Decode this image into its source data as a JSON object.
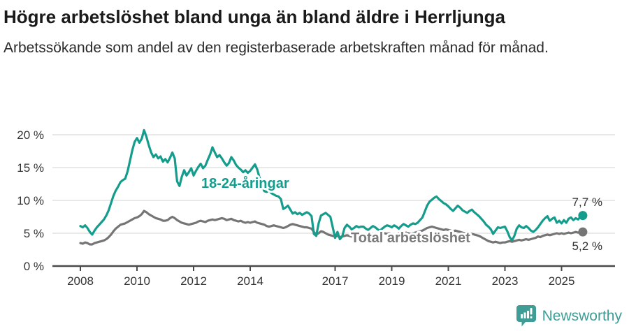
{
  "chart_data": {
    "type": "line",
    "title": "Högre arbetslöshet bland unga än bland äldre i Herrljunga",
    "subtitle": "Arbetssökande som andel av den registerbaserade arbetskraften månad för månad.",
    "unit": "%",
    "x": {
      "start_year": 2008,
      "start_month": 1,
      "interval": "monthly"
    },
    "ylim": [
      0,
      21
    ],
    "yticks": [
      0,
      5,
      10,
      15,
      20
    ],
    "ytick_suffix": " %",
    "xticks": [
      2008,
      2010,
      2012,
      2014,
      2017,
      2019,
      2021,
      2023,
      2025
    ],
    "grid": "horizontal",
    "legend": "inline-labels",
    "colors": {
      "young": "#149c8c",
      "total": "#757575",
      "axis": "#4a4a4a",
      "gridline": "#dcdcdc"
    },
    "series": [
      {
        "name": "18-24-åringar",
        "color": "#149c8c",
        "end_label": "7,7 %",
        "last_value": 7.7,
        "values": [
          6.1,
          5.9,
          6.2,
          5.8,
          5.2,
          4.8,
          5.4,
          5.9,
          6.3,
          6.7,
          7.1,
          7.7,
          8.5,
          9.6,
          10.7,
          11.5,
          12.1,
          12.8,
          13.1,
          13.3,
          14.4,
          16.0,
          17.6,
          18.9,
          19.5,
          18.8,
          19.4,
          20.7,
          19.7,
          18.4,
          17.3,
          16.6,
          17.0,
          16.4,
          16.7,
          15.9,
          16.3,
          15.8,
          16.5,
          17.3,
          16.4,
          12.9,
          12.2,
          13.6,
          14.6,
          13.8,
          14.3,
          14.9,
          13.8,
          14.5,
          15.1,
          15.6,
          14.9,
          15.3,
          16.2,
          17.0,
          18.1,
          17.3,
          16.6,
          16.9,
          16.4,
          15.8,
          15.3,
          15.7,
          16.6,
          16.1,
          15.4,
          15.0,
          14.7,
          14.3,
          14.6,
          14.2,
          14.5,
          15.0,
          15.5,
          14.7,
          13.4,
          12.1,
          11.4,
          11.3,
          11.5,
          11.1,
          10.9,
          10.7,
          10.6,
          10.2,
          8.7,
          8.9,
          9.2,
          8.6,
          8.0,
          8.2,
          7.9,
          8.1,
          7.8,
          8.0,
          8.2,
          8.0,
          7.6,
          4.9,
          4.6,
          6.5,
          7.7,
          7.9,
          8.1,
          7.8,
          7.5,
          5.9,
          4.3,
          5.2,
          4.1,
          4.5,
          5.8,
          6.3,
          6.0,
          5.6,
          5.8,
          6.1,
          5.9,
          6.0,
          6.0,
          5.7,
          5.5,
          5.8,
          6.1,
          5.9,
          5.6,
          5.4,
          5.7,
          6.0,
          6.2,
          6.1,
          5.9,
          6.2,
          6.0,
          5.7,
          6.1,
          6.4,
          6.2,
          6.0,
          6.3,
          6.5,
          6.4,
          6.6,
          7.0,
          7.4,
          8.3,
          9.2,
          9.8,
          10.1,
          10.4,
          10.6,
          10.2,
          9.9,
          9.6,
          9.4,
          9.1,
          8.7,
          8.4,
          8.8,
          9.2,
          8.9,
          8.5,
          8.3,
          8.1,
          8.4,
          8.6,
          8.2,
          7.9,
          7.6,
          7.2,
          6.8,
          6.3,
          6.0,
          5.6,
          4.9,
          5.4,
          5.9,
          5.8,
          5.9,
          6.0,
          5.3,
          4.4,
          3.9,
          4.6,
          5.7,
          6.2,
          5.9,
          5.8,
          6.1,
          5.8,
          5.4,
          5.2,
          5.5,
          5.9,
          6.4,
          6.9,
          7.3,
          7.6,
          6.9,
          7.2,
          7.4,
          6.6,
          6.9,
          6.5,
          7.0,
          6.6,
          7.2,
          7.4,
          7.0,
          7.3,
          7.1,
          7.5,
          7.7
        ]
      },
      {
        "name": "Total arbetslöshet",
        "color": "#757575",
        "end_label": "5,2 %",
        "last_value": 5.2,
        "values": [
          3.5,
          3.4,
          3.6,
          3.5,
          3.3,
          3.3,
          3.5,
          3.6,
          3.7,
          3.8,
          3.9,
          4.1,
          4.4,
          4.8,
          5.3,
          5.7,
          6.0,
          6.3,
          6.4,
          6.5,
          6.7,
          6.9,
          7.1,
          7.3,
          7.4,
          7.6,
          7.9,
          8.4,
          8.2,
          7.9,
          7.7,
          7.5,
          7.3,
          7.2,
          7.1,
          6.9,
          6.9,
          7.0,
          7.3,
          7.5,
          7.3,
          7.0,
          6.8,
          6.6,
          6.5,
          6.4,
          6.3,
          6.4,
          6.5,
          6.6,
          6.8,
          6.9,
          6.8,
          6.7,
          6.9,
          7.0,
          7.1,
          7.0,
          7.1,
          7.2,
          7.3,
          7.2,
          7.0,
          7.1,
          7.2,
          7.0,
          6.9,
          6.8,
          6.9,
          6.7,
          6.6,
          6.7,
          6.6,
          6.7,
          6.8,
          6.6,
          6.5,
          6.4,
          6.3,
          6.1,
          6.0,
          6.1,
          6.2,
          6.1,
          6.0,
          5.9,
          5.8,
          5.9,
          6.1,
          6.3,
          6.4,
          6.3,
          6.2,
          6.1,
          6.0,
          5.9,
          5.9,
          5.8,
          5.7,
          5.2,
          4.8,
          5.0,
          5.3,
          5.2,
          5.0,
          4.8,
          4.7,
          4.6,
          4.5,
          4.6,
          4.4,
          4.5,
          4.6,
          4.7,
          4.6,
          4.5,
          4.6,
          4.7,
          4.6,
          4.7,
          4.7,
          4.6,
          4.7,
          4.8,
          4.9,
          4.8,
          4.7,
          4.8,
          4.9,
          5.0,
          4.9,
          5.0,
          4.9,
          4.8,
          4.9,
          5.0,
          4.9,
          5.0,
          5.1,
          5.0,
          4.9,
          5.0,
          5.1,
          5.2,
          5.3,
          5.4,
          5.6,
          5.8,
          5.9,
          6.0,
          5.9,
          5.8,
          5.7,
          5.6,
          5.5,
          5.6,
          5.5,
          5.4,
          5.3,
          5.4,
          5.3,
          5.2,
          5.1,
          5.0,
          5.1,
          5.0,
          4.9,
          4.8,
          4.7,
          4.6,
          4.4,
          4.2,
          4.0,
          3.8,
          3.7,
          3.6,
          3.7,
          3.6,
          3.5,
          3.6,
          3.6,
          3.7,
          3.8,
          3.7,
          3.8,
          3.9,
          4.0,
          3.9,
          4.0,
          4.1,
          4.0,
          4.1,
          4.2,
          4.3,
          4.5,
          4.4,
          4.6,
          4.7,
          4.8,
          4.7,
          4.8,
          4.9,
          5.0,
          4.9,
          5.0,
          4.9,
          5.0,
          5.1,
          5.0,
          5.1,
          5.2,
          5.1,
          5.2,
          5.2
        ]
      }
    ]
  },
  "footer": {
    "brand": "Newsworthy",
    "logo_color": "#3f9d95",
    "logo_icon": "bar-chart-speech-bubble"
  }
}
